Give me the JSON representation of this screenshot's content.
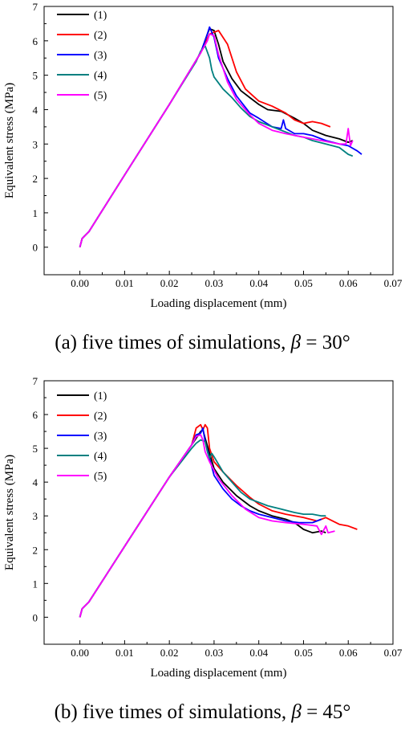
{
  "chart_data": [
    {
      "type": "line",
      "caption": {
        "prefix": "(a) five times of simulations, ",
        "symbol": "β",
        "suffix": " = 30°"
      },
      "xlabel": "Loading displacement (mm)",
      "ylabel": "Equivalent stress (MPa)",
      "xlim": [
        -0.008,
        0.07
      ],
      "ylim": [
        -0.8,
        7
      ],
      "xticks": [
        "0.00",
        "0.01",
        "0.02",
        "0.03",
        "0.04",
        "0.05",
        "0.06",
        "0.07"
      ],
      "yticks": [
        "0",
        "1",
        "2",
        "3",
        "4",
        "5",
        "6",
        "7"
      ],
      "grid": false,
      "legend_position": "top-left",
      "series": [
        {
          "name": "(1)",
          "color": "#000000",
          "x": [
            0.0,
            0.0005,
            0.002,
            0.01,
            0.02,
            0.027,
            0.0285,
            0.029,
            0.03,
            0.031,
            0.032,
            0.034,
            0.036,
            0.038,
            0.04,
            0.042,
            0.045,
            0.048,
            0.05,
            0.052,
            0.055,
            0.058,
            0.06,
            0.061
          ],
          "y": [
            0.0,
            0.25,
            0.45,
            2.1,
            4.15,
            5.65,
            6.2,
            6.35,
            6.3,
            5.9,
            5.4,
            4.9,
            4.55,
            4.35,
            4.15,
            4.0,
            3.95,
            3.75,
            3.6,
            3.4,
            3.25,
            3.15,
            3.05,
            3.1
          ]
        },
        {
          "name": "(2)",
          "color": "#ff0000",
          "x": [
            0.0,
            0.0005,
            0.002,
            0.01,
            0.02,
            0.027,
            0.029,
            0.03,
            0.031,
            0.033,
            0.035,
            0.037,
            0.04,
            0.043,
            0.046,
            0.048,
            0.05,
            0.052,
            0.054,
            0.056
          ],
          "y": [
            0.0,
            0.25,
            0.45,
            2.1,
            4.15,
            5.65,
            6.2,
            6.25,
            6.3,
            5.9,
            5.1,
            4.6,
            4.25,
            4.1,
            3.9,
            3.7,
            3.6,
            3.65,
            3.6,
            3.5
          ]
        },
        {
          "name": "(3)",
          "color": "#0000ff",
          "x": [
            0.0,
            0.0005,
            0.002,
            0.01,
            0.02,
            0.027,
            0.0285,
            0.029,
            0.03,
            0.031,
            0.033,
            0.035,
            0.038,
            0.04,
            0.043,
            0.045,
            0.0455,
            0.046,
            0.048,
            0.05,
            0.052,
            0.055,
            0.058,
            0.06,
            0.062,
            0.063
          ],
          "y": [
            0.0,
            0.25,
            0.45,
            2.1,
            4.15,
            5.65,
            6.2,
            6.4,
            6.1,
            5.5,
            4.9,
            4.4,
            3.9,
            3.75,
            3.5,
            3.45,
            3.7,
            3.45,
            3.3,
            3.3,
            3.25,
            3.1,
            3.0,
            2.95,
            2.8,
            2.7
          ]
        },
        {
          "name": "(4)",
          "color": "#008080",
          "x": [
            0.0,
            0.0005,
            0.002,
            0.01,
            0.02,
            0.026,
            0.027,
            0.028,
            0.029,
            0.0295,
            0.03,
            0.032,
            0.034,
            0.036,
            0.038,
            0.04,
            0.042,
            0.044,
            0.046,
            0.048,
            0.05,
            0.052,
            0.055,
            0.058,
            0.06,
            0.061
          ],
          "y": [
            0.0,
            0.25,
            0.45,
            2.1,
            4.15,
            5.4,
            5.7,
            5.85,
            5.5,
            5.15,
            4.95,
            4.6,
            4.35,
            4.05,
            3.8,
            3.65,
            3.55,
            3.45,
            3.35,
            3.25,
            3.2,
            3.1,
            3.0,
            2.9,
            2.7,
            2.65
          ]
        },
        {
          "name": "(5)",
          "color": "#ff00ff",
          "x": [
            0.0,
            0.0005,
            0.002,
            0.01,
            0.02,
            0.027,
            0.0285,
            0.029,
            0.03,
            0.031,
            0.033,
            0.035,
            0.038,
            0.04,
            0.043,
            0.046,
            0.05,
            0.054,
            0.058,
            0.0595,
            0.06,
            0.0605,
            0.061
          ],
          "y": [
            0.0,
            0.25,
            0.45,
            2.1,
            4.15,
            5.65,
            6.0,
            6.2,
            6.15,
            5.6,
            4.8,
            4.3,
            3.85,
            3.6,
            3.4,
            3.3,
            3.2,
            3.1,
            3.0,
            3.0,
            3.45,
            2.95,
            3.1
          ]
        }
      ]
    },
    {
      "type": "line",
      "caption": {
        "prefix": "(b) five times of simulations, ",
        "symbol": "β",
        "suffix": " = 45°"
      },
      "xlabel": "Loading displacement (mm)",
      "ylabel": "Equivalent stress (MPa)",
      "xlim": [
        -0.008,
        0.07
      ],
      "ylim": [
        -0.8,
        7
      ],
      "xticks": [
        "0.00",
        "0.01",
        "0.02",
        "0.03",
        "0.04",
        "0.05",
        "0.06",
        "0.07"
      ],
      "yticks": [
        "0",
        "1",
        "2",
        "3",
        "4",
        "5",
        "6",
        "7"
      ],
      "grid": false,
      "legend_position": "top-left",
      "series": [
        {
          "name": "(1)",
          "color": "#000000",
          "x": [
            0.0,
            0.0005,
            0.002,
            0.01,
            0.02,
            0.025,
            0.027,
            0.0275,
            0.028,
            0.03,
            0.032,
            0.035,
            0.038,
            0.04,
            0.043,
            0.046,
            0.048,
            0.05,
            0.052,
            0.054,
            0.055
          ],
          "y": [
            0.0,
            0.25,
            0.45,
            2.1,
            4.15,
            5.1,
            5.5,
            5.55,
            5.3,
            4.4,
            4.0,
            3.6,
            3.3,
            3.15,
            3.0,
            2.9,
            2.8,
            2.6,
            2.5,
            2.55,
            2.5
          ]
        },
        {
          "name": "(2)",
          "color": "#ff0000",
          "x": [
            0.0,
            0.0005,
            0.002,
            0.01,
            0.02,
            0.025,
            0.026,
            0.027,
            0.0275,
            0.028,
            0.0285,
            0.029,
            0.03,
            0.032,
            0.035,
            0.038,
            0.04,
            0.043,
            0.046,
            0.05,
            0.053,
            0.055,
            0.058,
            0.06,
            0.062
          ],
          "y": [
            0.0,
            0.25,
            0.45,
            2.1,
            4.15,
            5.1,
            5.6,
            5.7,
            5.55,
            5.7,
            5.6,
            5.0,
            4.6,
            4.3,
            3.9,
            3.55,
            3.35,
            3.15,
            3.05,
            2.95,
            2.85,
            2.95,
            2.75,
            2.7,
            2.6
          ]
        },
        {
          "name": "(3)",
          "color": "#0000ff",
          "x": [
            0.0,
            0.0005,
            0.002,
            0.01,
            0.02,
            0.025,
            0.026,
            0.027,
            0.0275,
            0.028,
            0.029,
            0.03,
            0.032,
            0.034,
            0.036,
            0.038,
            0.04,
            0.043,
            0.046,
            0.049,
            0.052,
            0.054
          ],
          "y": [
            0.0,
            0.25,
            0.45,
            2.1,
            4.15,
            5.1,
            5.4,
            5.45,
            5.6,
            5.2,
            4.7,
            4.2,
            3.8,
            3.5,
            3.3,
            3.15,
            3.05,
            2.95,
            2.85,
            2.8,
            2.8,
            2.9
          ]
        },
        {
          "name": "(4)",
          "color": "#008080",
          "x": [
            0.0,
            0.0005,
            0.002,
            0.01,
            0.02,
            0.025,
            0.026,
            0.027,
            0.028,
            0.0285,
            0.029,
            0.0295,
            0.03,
            0.032,
            0.034,
            0.036,
            0.038,
            0.04,
            0.042,
            0.045,
            0.048,
            0.05,
            0.052,
            0.054,
            0.055
          ],
          "y": [
            0.0,
            0.25,
            0.45,
            2.1,
            4.15,
            5.0,
            5.15,
            5.25,
            5.2,
            4.9,
            4.7,
            4.85,
            4.75,
            4.3,
            4.0,
            3.7,
            3.5,
            3.4,
            3.3,
            3.2,
            3.1,
            3.05,
            3.05,
            3.0,
            3.0
          ]
        },
        {
          "name": "(5)",
          "color": "#ff00ff",
          "x": [
            0.0,
            0.0005,
            0.002,
            0.01,
            0.02,
            0.025,
            0.026,
            0.027,
            0.0275,
            0.028,
            0.029,
            0.031,
            0.034,
            0.037,
            0.04,
            0.043,
            0.046,
            0.05,
            0.053,
            0.054,
            0.055,
            0.0555,
            0.057
          ],
          "y": [
            0.0,
            0.25,
            0.45,
            2.1,
            4.15,
            5.1,
            5.35,
            5.4,
            5.25,
            4.9,
            4.6,
            4.1,
            3.6,
            3.2,
            2.95,
            2.85,
            2.8,
            2.75,
            2.7,
            2.45,
            2.7,
            2.5,
            2.55
          ]
        }
      ]
    }
  ]
}
